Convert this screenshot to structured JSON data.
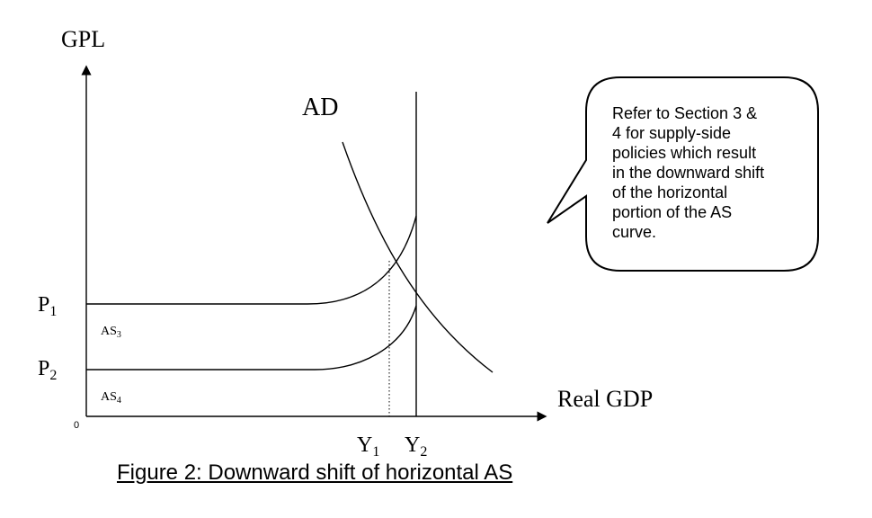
{
  "diagram": {
    "y_axis_label": "GPL",
    "x_axis_label": "Real GDP",
    "origin_label": "0",
    "curve_label_ad": "AD",
    "curve_label_as3": {
      "base": "AS",
      "sub": "3"
    },
    "curve_label_as4": {
      "base": "AS",
      "sub": "4"
    },
    "price_p1": {
      "base": "P",
      "sub": "1"
    },
    "price_p2": {
      "base": "P",
      "sub": "2"
    },
    "output_y1": {
      "base": "Y",
      "sub": "1"
    },
    "output_y2": {
      "base": "Y",
      "sub": "2"
    },
    "callout_lines": [
      "Refer to Section 3 &",
      "4 for supply-side",
      "policies which result",
      "in the downward shift",
      "of the horizontal",
      "portion of the AS",
      "curve."
    ],
    "caption": "Figure 2: Downward shift of horizontal AS"
  }
}
